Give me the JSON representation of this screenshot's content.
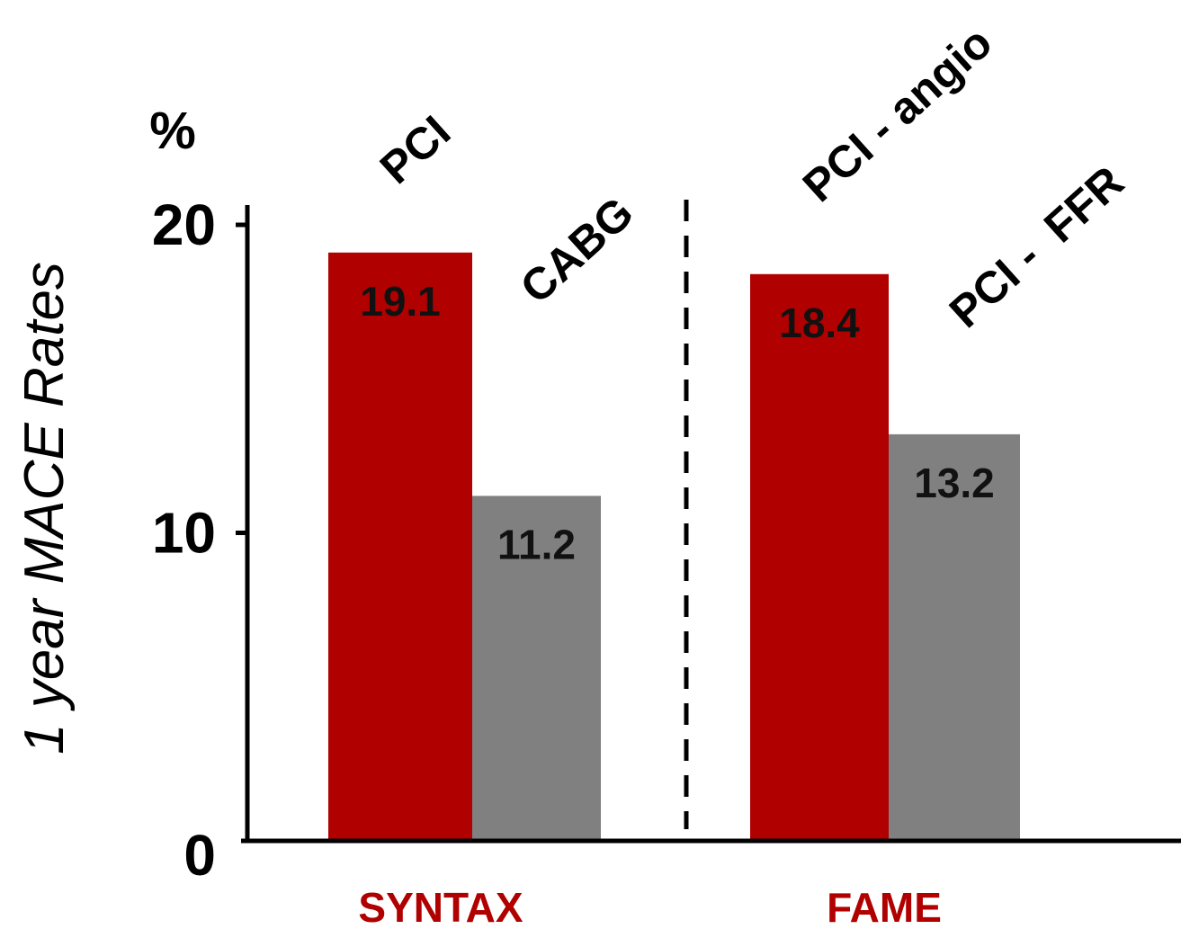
{
  "chart_data": {
    "type": "bar",
    "ylabel": "1 year MACE Rates",
    "yunit": "%",
    "ylim": [
      0,
      20
    ],
    "yticks": [
      {
        "value": 0,
        "label": "0"
      },
      {
        "value": 10,
        "label": "10"
      },
      {
        "value": 20,
        "label": "20"
      }
    ],
    "groups": [
      {
        "name": "SYNTAX",
        "bars": [
          {
            "label": "PCI",
            "value": 19.1,
            "value_label": "19.1"
          },
          {
            "label": "CABG",
            "value": 11.2,
            "value_label": "11.2"
          }
        ]
      },
      {
        "name": "FAME",
        "bars": [
          {
            "label": "PCI - angio",
            "value": 18.4,
            "value_label": "18.4"
          },
          {
            "label": "PCI -  FFR",
            "value": 13.2,
            "value_label": "13.2"
          }
        ]
      }
    ],
    "grid": false,
    "group_separator": "dashed",
    "colors": {
      "primary_bar": "#b00000",
      "secondary_bar": "#808080",
      "group_label": "#b00000",
      "axis": "#000000"
    }
  }
}
